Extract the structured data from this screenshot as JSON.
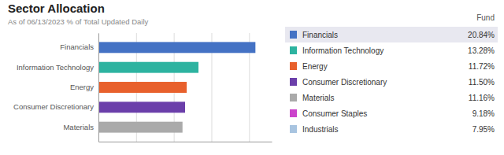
{
  "chart_data": {
    "type": "bar",
    "orientation": "horizontal",
    "title": "Sector Allocation",
    "subtitle": "As of 06/13/2023 % of Total Updated Daily",
    "categories": [
      "Financials",
      "Information Technology",
      "Energy",
      "Consumer Discretionary",
      "Materials"
    ],
    "values": [
      20.84,
      13.28,
      11.72,
      11.5,
      11.16
    ],
    "colors": [
      "#4472C4",
      "#2DB3A0",
      "#E8602C",
      "#6B3FAA",
      "#AAAAAA"
    ],
    "xlim": [
      0,
      23
    ],
    "xticks": [
      0,
      5,
      10,
      15,
      20
    ],
    "grid": true,
    "tick_labels": "y",
    "legend": "right",
    "legend_header": "Fund",
    "legend_entries": {
      "names": [
        "Financials",
        "Information Technology",
        "Energy",
        "Consumer Discretionary",
        "Materials",
        "Consumer Staples",
        "Industrials"
      ],
      "values": [
        20.84,
        13.28,
        11.72,
        11.5,
        11.16,
        9.18,
        7.95
      ],
      "value_labels": [
        "20.84%",
        "13.28%",
        "11.72%",
        "11.50%",
        "11.16%",
        "9.18%",
        "7.95%"
      ],
      "colors": [
        "#4472C4",
        "#2DB3A0",
        "#E8602C",
        "#6B3FAA",
        "#AAAAAA",
        "#CC44CC",
        "#A8C4E0"
      ]
    }
  }
}
